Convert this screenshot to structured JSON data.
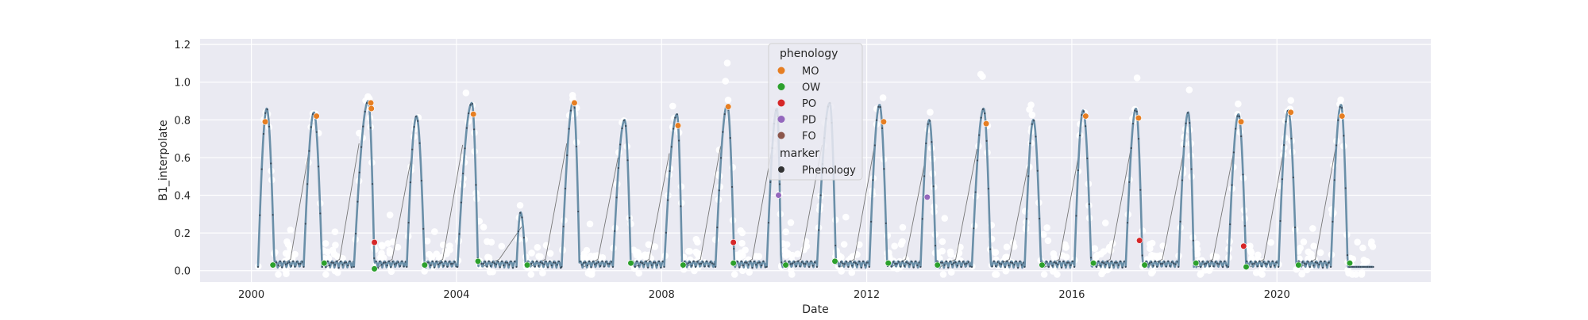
{
  "chart_data": {
    "type": "line",
    "title": "",
    "xlabel": "Date",
    "ylabel": "B1_interpolate",
    "xlim": [
      1999.0,
      2023.0
    ],
    "ylim": [
      -0.06,
      1.23
    ],
    "xticks": [
      2000,
      2004,
      2008,
      2012,
      2016,
      2020
    ],
    "xtick_labels": [
      "2000",
      "2004",
      "2008",
      "2012",
      "2016",
      "2020"
    ],
    "yticks": [
      0.0,
      0.2,
      0.4,
      0.6,
      0.8,
      1.0,
      1.2
    ],
    "ytick_labels": [
      "0.0",
      "0.2",
      "0.4",
      "0.6",
      "0.8",
      "1.0",
      "1.2"
    ],
    "grid": true,
    "background": "#eaeaf2",
    "line_color": "#6a8fa8",
    "scatter_color": "#ffffff",
    "seasons": [
      {
        "start": 2000.13,
        "peak": 2000.3,
        "peak_value": 0.86,
        "end": 2000.45
      },
      {
        "start": 2001.02,
        "peak": 2001.22,
        "peak_value": 0.84,
        "end": 2001.38
      },
      {
        "start": 2002.0,
        "peak": 2002.28,
        "peak_value": 0.9,
        "end": 2002.4
      },
      {
        "start": 2003.03,
        "peak": 2003.22,
        "peak_value": 0.82,
        "end": 2003.38
      },
      {
        "start": 2004.02,
        "peak": 2004.3,
        "peak_value": 0.89,
        "end": 2004.42
      },
      {
        "start": 2005.17,
        "peak": 2005.25,
        "peak_value": 0.31,
        "end": 2005.35
      },
      {
        "start": 2006.05,
        "peak": 2006.28,
        "peak_value": 0.9,
        "end": 2006.4
      },
      {
        "start": 2007.05,
        "peak": 2007.28,
        "peak_value": 0.8,
        "end": 2007.4
      },
      {
        "start": 2008.05,
        "peak": 2008.3,
        "peak_value": 0.83,
        "end": 2008.4
      },
      {
        "start": 2009.05,
        "peak": 2009.28,
        "peak_value": 0.88,
        "end": 2009.42
      },
      {
        "start": 2010.05,
        "peak": 2010.25,
        "peak_value": 0.86,
        "end": 2010.33
      },
      {
        "start": 2011.03,
        "peak": 2011.28,
        "peak_value": 0.89,
        "end": 2011.4
      },
      {
        "start": 2012.05,
        "peak": 2012.25,
        "peak_value": 0.88,
        "end": 2012.4
      },
      {
        "start": 2013.05,
        "peak": 2013.22,
        "peak_value": 0.8,
        "end": 2013.35
      },
      {
        "start": 2014.05,
        "peak": 2014.28,
        "peak_value": 0.86,
        "end": 2014.42
      },
      {
        "start": 2015.08,
        "peak": 2015.25,
        "peak_value": 0.8,
        "end": 2015.4
      },
      {
        "start": 2016.05,
        "peak": 2016.22,
        "peak_value": 0.85,
        "end": 2016.38
      },
      {
        "start": 2017.05,
        "peak": 2017.25,
        "peak_value": 0.86,
        "end": 2017.38
      },
      {
        "start": 2018.08,
        "peak": 2018.27,
        "peak_value": 0.84,
        "end": 2018.38
      },
      {
        "start": 2019.05,
        "peak": 2019.25,
        "peak_value": 0.83,
        "end": 2019.4
      },
      {
        "start": 2020.03,
        "peak": 2020.22,
        "peak_value": 0.85,
        "end": 2020.38
      },
      {
        "start": 2021.05,
        "peak": 2021.25,
        "peak_value": 0.88,
        "end": 2021.38
      }
    ],
    "phenology": [
      {
        "type": "MO",
        "date": 2000.27,
        "value": 0.79
      },
      {
        "type": "MO",
        "date": 2001.27,
        "value": 0.82
      },
      {
        "type": "MO",
        "date": 2002.33,
        "value": 0.89
      },
      {
        "type": "MO",
        "date": 2002.34,
        "value": 0.86
      },
      {
        "type": "MO",
        "date": 2004.33,
        "value": 0.83
      },
      {
        "type": "MO",
        "date": 2006.3,
        "value": 0.89
      },
      {
        "type": "MO",
        "date": 2008.32,
        "value": 0.77
      },
      {
        "type": "MO",
        "date": 2009.3,
        "value": 0.87
      },
      {
        "type": "MO",
        "date": 2012.33,
        "value": 0.79
      },
      {
        "type": "MO",
        "date": 2014.33,
        "value": 0.78
      },
      {
        "type": "MO",
        "date": 2016.27,
        "value": 0.82
      },
      {
        "type": "MO",
        "date": 2017.3,
        "value": 0.81
      },
      {
        "type": "MO",
        "date": 2019.3,
        "value": 0.79
      },
      {
        "type": "MO",
        "date": 2020.27,
        "value": 0.84
      },
      {
        "type": "MO",
        "date": 2021.27,
        "value": 0.82
      },
      {
        "type": "OW",
        "date": 2000.42,
        "value": 0.03
      },
      {
        "type": "OW",
        "date": 2001.42,
        "value": 0.04
      },
      {
        "type": "OW",
        "date": 2002.4,
        "value": 0.01
      },
      {
        "type": "OW",
        "date": 2003.38,
        "value": 0.03
      },
      {
        "type": "OW",
        "date": 2004.42,
        "value": 0.05
      },
      {
        "type": "OW",
        "date": 2005.38,
        "value": 0.03
      },
      {
        "type": "OW",
        "date": 2007.4,
        "value": 0.04
      },
      {
        "type": "OW",
        "date": 2008.42,
        "value": 0.03
      },
      {
        "type": "OW",
        "date": 2009.4,
        "value": 0.04
      },
      {
        "type": "OW",
        "date": 2010.42,
        "value": 0.03
      },
      {
        "type": "OW",
        "date": 2011.38,
        "value": 0.05
      },
      {
        "type": "OW",
        "date": 2012.42,
        "value": 0.04
      },
      {
        "type": "OW",
        "date": 2013.38,
        "value": 0.03
      },
      {
        "type": "OW",
        "date": 2015.42,
        "value": 0.03
      },
      {
        "type": "OW",
        "date": 2016.42,
        "value": 0.04
      },
      {
        "type": "OW",
        "date": 2017.42,
        "value": 0.03
      },
      {
        "type": "OW",
        "date": 2018.42,
        "value": 0.04
      },
      {
        "type": "OW",
        "date": 2019.4,
        "value": 0.02
      },
      {
        "type": "OW",
        "date": 2020.42,
        "value": 0.03
      },
      {
        "type": "OW",
        "date": 2021.42,
        "value": 0.04
      },
      {
        "type": "PO",
        "date": 2002.4,
        "value": 0.15
      },
      {
        "type": "PO",
        "date": 2009.4,
        "value": 0.15
      },
      {
        "type": "PO",
        "date": 2017.32,
        "value": 0.16
      },
      {
        "type": "PO",
        "date": 2019.35,
        "value": 0.13
      },
      {
        "type": "PD",
        "date": 2010.28,
        "value": 0.4
      },
      {
        "type": "PD",
        "date": 2013.18,
        "value": 0.39
      }
    ],
    "legend": {
      "placement": "top-center",
      "title": "phenology",
      "entries": [
        {
          "label": "MO",
          "color": "#e67e22"
        },
        {
          "label": "OW",
          "color": "#2ca02c"
        },
        {
          "label": "PO",
          "color": "#d62728"
        },
        {
          "label": "PD",
          "color": "#9467bd"
        },
        {
          "label": "FO",
          "color": "#8c564b"
        }
      ],
      "marker_title": "marker",
      "marker_entries": [
        {
          "label": "Phenology",
          "color": "#333333"
        }
      ]
    }
  }
}
